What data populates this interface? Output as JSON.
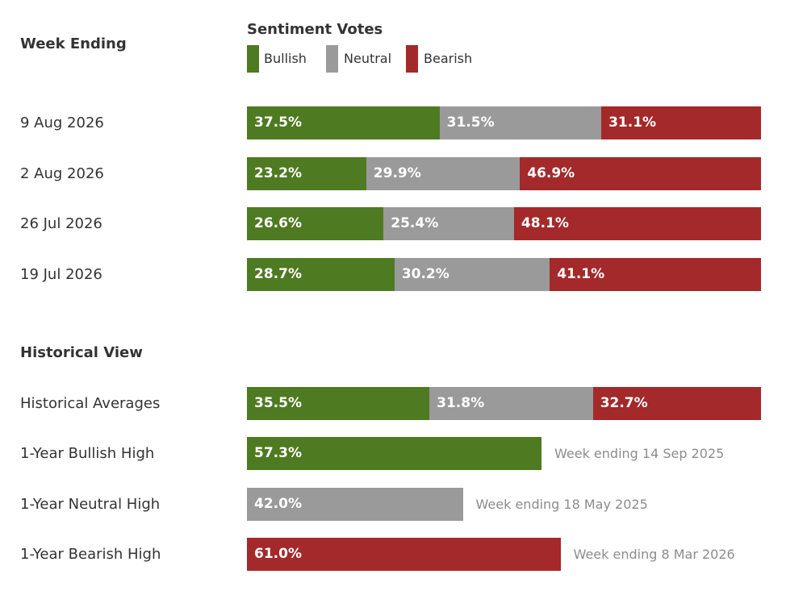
{
  "header": {
    "week_ending_label": "Week Ending",
    "legend_title": "Sentiment Votes"
  },
  "legend": [
    {
      "label": "Bullish",
      "color": "#4e7a22"
    },
    {
      "label": "Neutral",
      "color": "#9a9a9a"
    },
    {
      "label": "Bearish",
      "color": "#a3292b"
    }
  ],
  "historical_heading": "Historical View",
  "chart_data": {
    "type": "bar",
    "orientation": "horizontal",
    "stacked": true,
    "xlim": [
      0,
      100
    ],
    "unit": "%",
    "series_names": [
      "Bullish",
      "Neutral",
      "Bearish"
    ],
    "weekly": [
      {
        "label": "9 Aug 2026",
        "values": [
          37.5,
          31.5,
          31.1
        ],
        "texts": [
          "37.5%",
          "31.5%",
          "31.1%"
        ]
      },
      {
        "label": "2 Aug 2026",
        "values": [
          23.2,
          29.9,
          46.9
        ],
        "texts": [
          "23.2%",
          "29.9%",
          "46.9%"
        ]
      },
      {
        "label": "26 Jul 2026",
        "values": [
          26.6,
          25.4,
          48.1
        ],
        "texts": [
          "26.6%",
          "25.4%",
          "48.1%"
        ]
      },
      {
        "label": "19 Jul 2026",
        "values": [
          28.7,
          30.2,
          41.1
        ],
        "texts": [
          "28.7%",
          "30.2%",
          "41.1%"
        ]
      }
    ],
    "historical_averages": {
      "label": "Historical Averages",
      "values": [
        35.5,
        31.8,
        32.7
      ],
      "texts": [
        "35.5%",
        "31.8%",
        "32.7%"
      ]
    },
    "highs": [
      {
        "label": "1-Year Bullish High",
        "series": "Bullish",
        "value": 57.3,
        "text": "57.3%",
        "note": "Week ending 14 Sep 2025"
      },
      {
        "label": "1-Year Neutral High",
        "series": "Neutral",
        "value": 42.0,
        "text": "42.0%",
        "note": "Week ending 18 May 2025"
      },
      {
        "label": "1-Year Bearish High",
        "series": "Bearish",
        "value": 61.0,
        "text": "61.0%",
        "note": "Week ending 8 Mar 2026"
      }
    ]
  }
}
